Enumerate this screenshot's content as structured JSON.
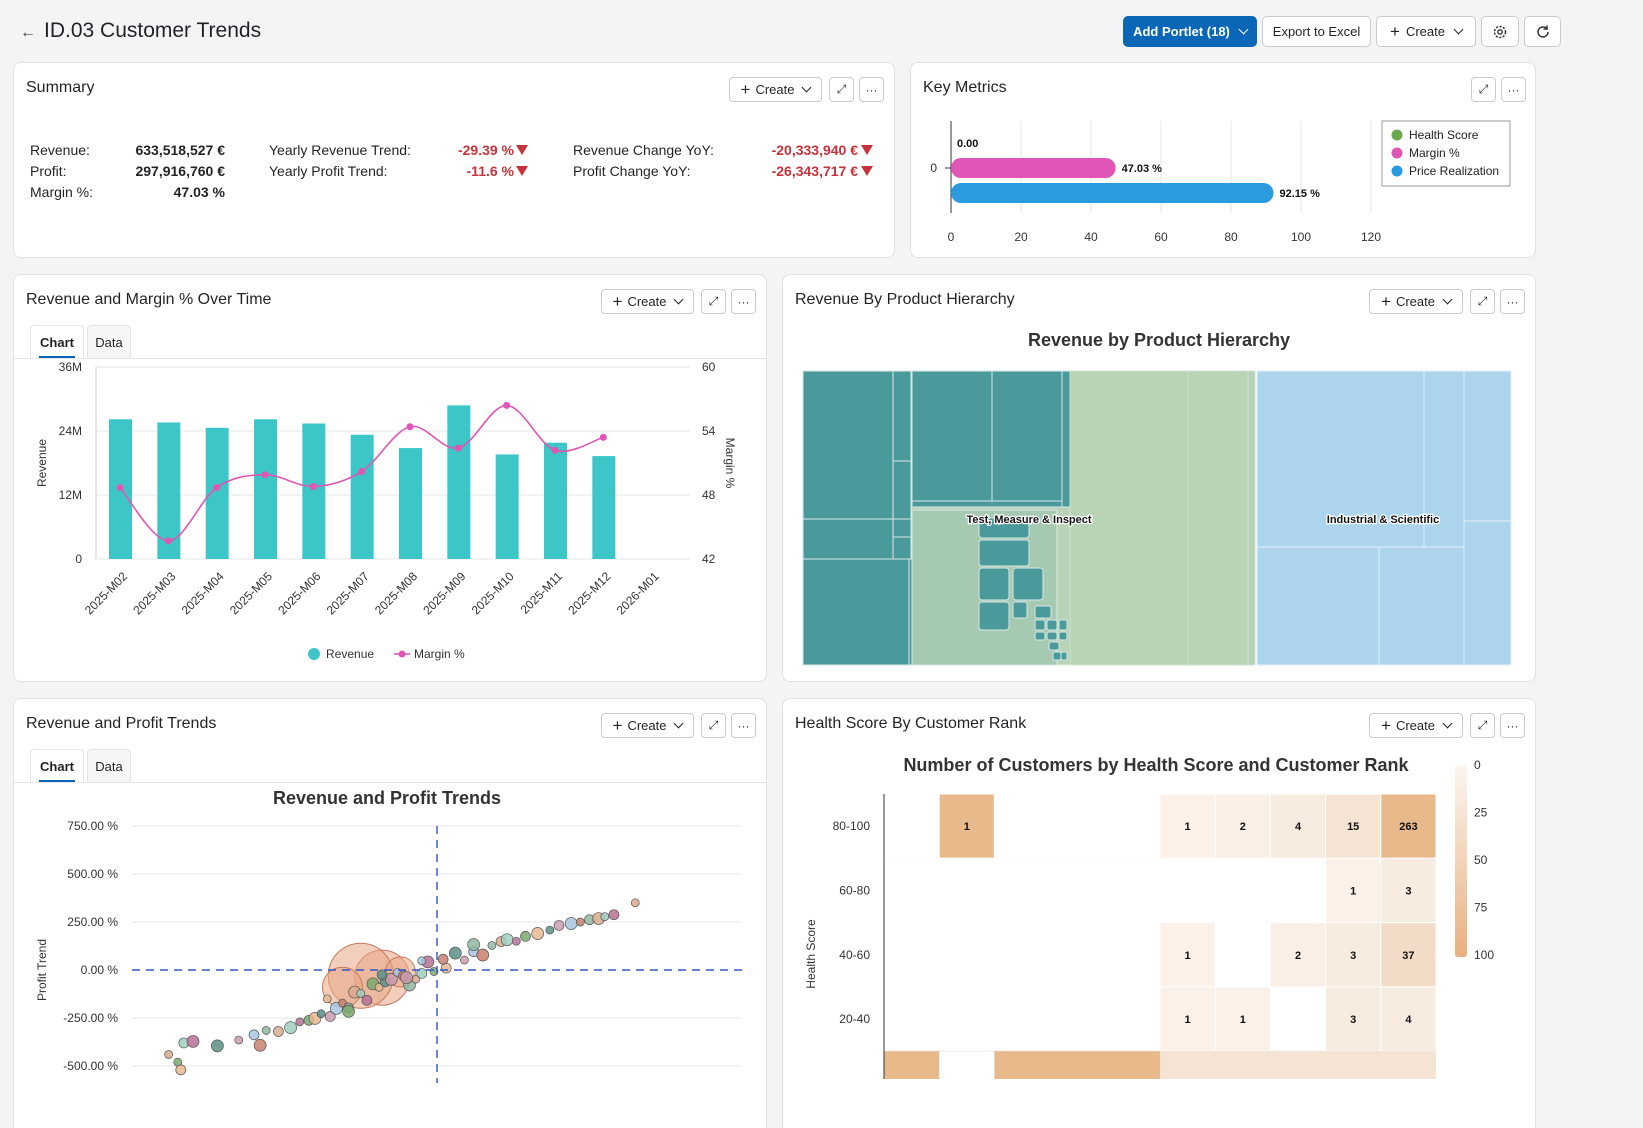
{
  "header": {
    "title": "ID.03 Customer Trends",
    "add_portlet": "Add Portlet (18)",
    "export": "Export to Excel",
    "create": "Create"
  },
  "summary": {
    "title": "Summary",
    "create": "Create",
    "revenue_label": "Revenue:",
    "revenue_value": "633,518,527 €",
    "profit_label": "Profit:",
    "profit_value": "297,916,760 €",
    "margin_label": "Margin %:",
    "margin_value": "47.03 %",
    "yrt_label": "Yearly Revenue Trend:",
    "yrt_value": "-29.39 %",
    "ypt_label": "Yearly Profit Trend:",
    "ypt_value": "-11.6 %",
    "rcy_label": "Revenue Change YoY:",
    "rcy_value": "-20,333,940 €",
    "pcy_label": "Profit Change YoY:",
    "pcy_value": "-26,343,717 €",
    "negative_color": "#c8323a"
  },
  "key_metrics": {
    "title": "Key Metrics",
    "chart_data": {
      "type": "bar",
      "orientation": "horizontal",
      "categories": [
        "0"
      ],
      "series": [
        {
          "name": "Health Score",
          "values": [
            0.0
          ],
          "label": "0.00",
          "color": "#6aa84f"
        },
        {
          "name": "Margin %",
          "values": [
            47.03
          ],
          "label": "47.03 %",
          "color": "#e055b5"
        },
        {
          "name": "Price Realization",
          "values": [
            92.15
          ],
          "label": "92.15 %",
          "color": "#2b9be0"
        }
      ],
      "xlim": [
        0,
        120
      ],
      "x_ticks": [
        "0",
        "20",
        "40",
        "60",
        "80",
        "100",
        "120"
      ],
      "legend": "top-right"
    }
  },
  "rev_margin": {
    "title": "Revenue and Margin % Over Time",
    "create": "Create",
    "tab_chart": "Chart",
    "tab_data": "Data",
    "chart_data": {
      "type": "bar",
      "categories": [
        "2025-M02",
        "2025-M03",
        "2025-M04",
        "2025-M05",
        "2025-M06",
        "2025-M07",
        "2025-M08",
        "2025-M09",
        "2025-M10",
        "2025-M11",
        "2025-M12",
        "2026-M01"
      ],
      "series": [
        {
          "name": "Revenue",
          "axis": "left",
          "type": "bar",
          "color": "#3cc6c8",
          "values": [
            26.2,
            25.6,
            24.6,
            26.2,
            25.4,
            23.3,
            20.8,
            28.8,
            19.6,
            21.8,
            19.3,
            null
          ]
        },
        {
          "name": "Margin %",
          "axis": "right",
          "type": "line",
          "color": "#e055b5",
          "values": [
            48.7,
            43.7,
            48.7,
            49.9,
            48.8,
            50.2,
            54.4,
            52.4,
            56.4,
            52.2,
            53.4,
            null
          ]
        }
      ],
      "ylabel": "Revenue",
      "y2label": "Margin %",
      "ylim": [
        0,
        36
      ],
      "y2lim": [
        42,
        60
      ],
      "y_ticks": [
        "0",
        "12M",
        "24M",
        "36M"
      ],
      "y2_ticks": [
        "42",
        "48",
        "54",
        "60"
      ],
      "legend": "bottom"
    }
  },
  "treemap": {
    "title": "Revenue By Product Hierarchy",
    "create": "Create",
    "chart_title": "Revenue by Product Hierarchy",
    "label_a": "Test, Measure & Inspect",
    "label_b": "Industrial & Scientific",
    "colors": {
      "teal": "#4a9a9b",
      "green": "#b8d3b6",
      "blue": "#acd4ec"
    }
  },
  "scatter": {
    "title": "Revenue and Profit Trends",
    "create": "Create",
    "tab_chart": "Chart",
    "tab_data": "Data",
    "chart_data": {
      "type": "scatter",
      "title": "Revenue and Profit Trends",
      "ylabel": "Profit Trend",
      "y_ticks": [
        "750.00 %",
        "500.00 %",
        "250.00 %",
        "0.00 %",
        "-250.00 %",
        "-500.00 %"
      ],
      "ylim": [
        -520,
        800
      ],
      "xlim": [
        -100,
        100
      ],
      "reference_lines": {
        "x": 0,
        "y": 0
      },
      "points": [
        [
          -88,
          -440
        ],
        [
          -83,
          -380
        ],
        [
          -80,
          -372
        ],
        [
          -85,
          -480
        ],
        [
          -84,
          -520
        ],
        [
          -72,
          -395
        ],
        [
          -65,
          -365
        ],
        [
          -60,
          -338
        ],
        [
          -58,
          -392
        ],
        [
          -56,
          -315
        ],
        [
          -52,
          -320
        ],
        [
          -48,
          -300
        ],
        [
          -45,
          -270
        ],
        [
          -42,
          -262
        ],
        [
          -40,
          -252
        ],
        [
          -38,
          -228
        ],
        [
          -35,
          -242
        ],
        [
          -33,
          -200
        ],
        [
          -31,
          -172
        ],
        [
          -29,
          -198
        ],
        [
          -27,
          -115
        ],
        [
          -25,
          -122
        ],
        [
          -23,
          -158
        ],
        [
          -21,
          -72
        ],
        [
          -19,
          -90
        ],
        [
          -17,
          -62
        ],
        [
          -15,
          -48
        ],
        [
          -13,
          -12
        ],
        [
          -11,
          -30
        ],
        [
          -9,
          -78
        ],
        [
          -7,
          -48
        ],
        [
          -5,
          -18
        ],
        [
          -3,
          42
        ],
        [
          -1,
          -8
        ],
        [
          3,
          10
        ],
        [
          6,
          88
        ],
        [
          9,
          52
        ],
        [
          12,
          95
        ],
        [
          15,
          78
        ],
        [
          18,
          128
        ],
        [
          21,
          148
        ],
        [
          23,
          158
        ],
        [
          26,
          150
        ],
        [
          29,
          175
        ],
        [
          33,
          190
        ],
        [
          37,
          208
        ],
        [
          40,
          232
        ],
        [
          44,
          242
        ],
        [
          47,
          250
        ],
        [
          50,
          262
        ],
        [
          53,
          268
        ],
        [
          55,
          278
        ],
        [
          58,
          288
        ],
        [
          -29,
          -215
        ],
        [
          -36,
          -150
        ],
        [
          -18,
          -25
        ],
        [
          -10,
          -40
        ],
        [
          -5,
          48
        ],
        [
          2,
          56
        ],
        [
          12,
          132
        ],
        [
          65,
          350
        ]
      ],
      "bubbles": [
        [
          -18,
          -40,
          110
        ],
        [
          -25,
          -30,
          130
        ],
        [
          -31,
          -90,
          80
        ],
        [
          -12,
          -10,
          60
        ]
      ]
    }
  },
  "heatmap": {
    "title": "Health Score By Customer Rank",
    "create": "Create",
    "chart_title": "Number of Customers by Health Score and Customer Rank",
    "ylabel": "Health Score",
    "rows": [
      "80-100",
      "60-80",
      "40-60",
      "20-40"
    ],
    "cells": [
      [
        "",
        "1",
        "",
        "",
        "",
        "1",
        "2",
        "4",
        "15",
        "263"
      ],
      [
        "",
        "",
        "",
        "",
        "",
        "",
        "",
        "",
        "1",
        "3"
      ],
      [
        "",
        "",
        "",
        "",
        "",
        "1",
        "",
        "2",
        "3",
        "37"
      ],
      [
        "",
        "",
        "",
        "",
        "",
        "1",
        "1",
        "",
        "3",
        "4"
      ]
    ],
    "colorbar_ticks": [
      "0",
      "25",
      "50",
      "75",
      "100"
    ]
  }
}
